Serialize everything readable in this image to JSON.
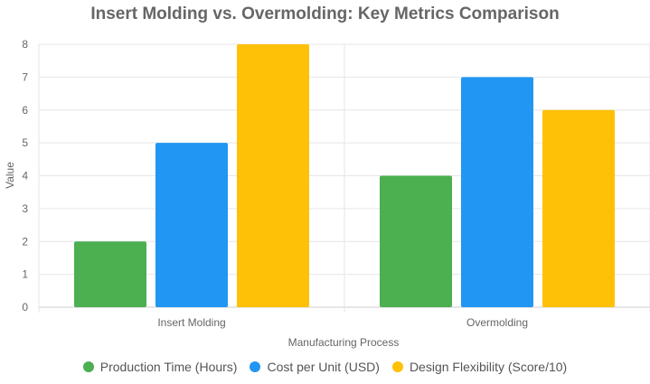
{
  "chart_data": {
    "type": "bar",
    "title": "Insert Molding vs. Overmolding: Key Metrics Comparison",
    "xlabel": "Manufacturing Process",
    "ylabel": "Value",
    "categories": [
      "Insert Molding",
      "Overmolding"
    ],
    "series": [
      {
        "name": "Production Time (Hours)",
        "values": [
          2,
          4
        ],
        "color": "#4caf50"
      },
      {
        "name": "Cost per Unit (USD)",
        "values": [
          5,
          7
        ],
        "color": "#2196f3"
      },
      {
        "name": "Design Flexibility (Score/10)",
        "values": [
          8,
          6
        ],
        "color": "#ffc107"
      }
    ],
    "ylim": [
      0,
      8
    ],
    "yticks": [
      0,
      1,
      2,
      3,
      4,
      5,
      6,
      7,
      8
    ],
    "grid": true,
    "legend_position": "bottom"
  }
}
